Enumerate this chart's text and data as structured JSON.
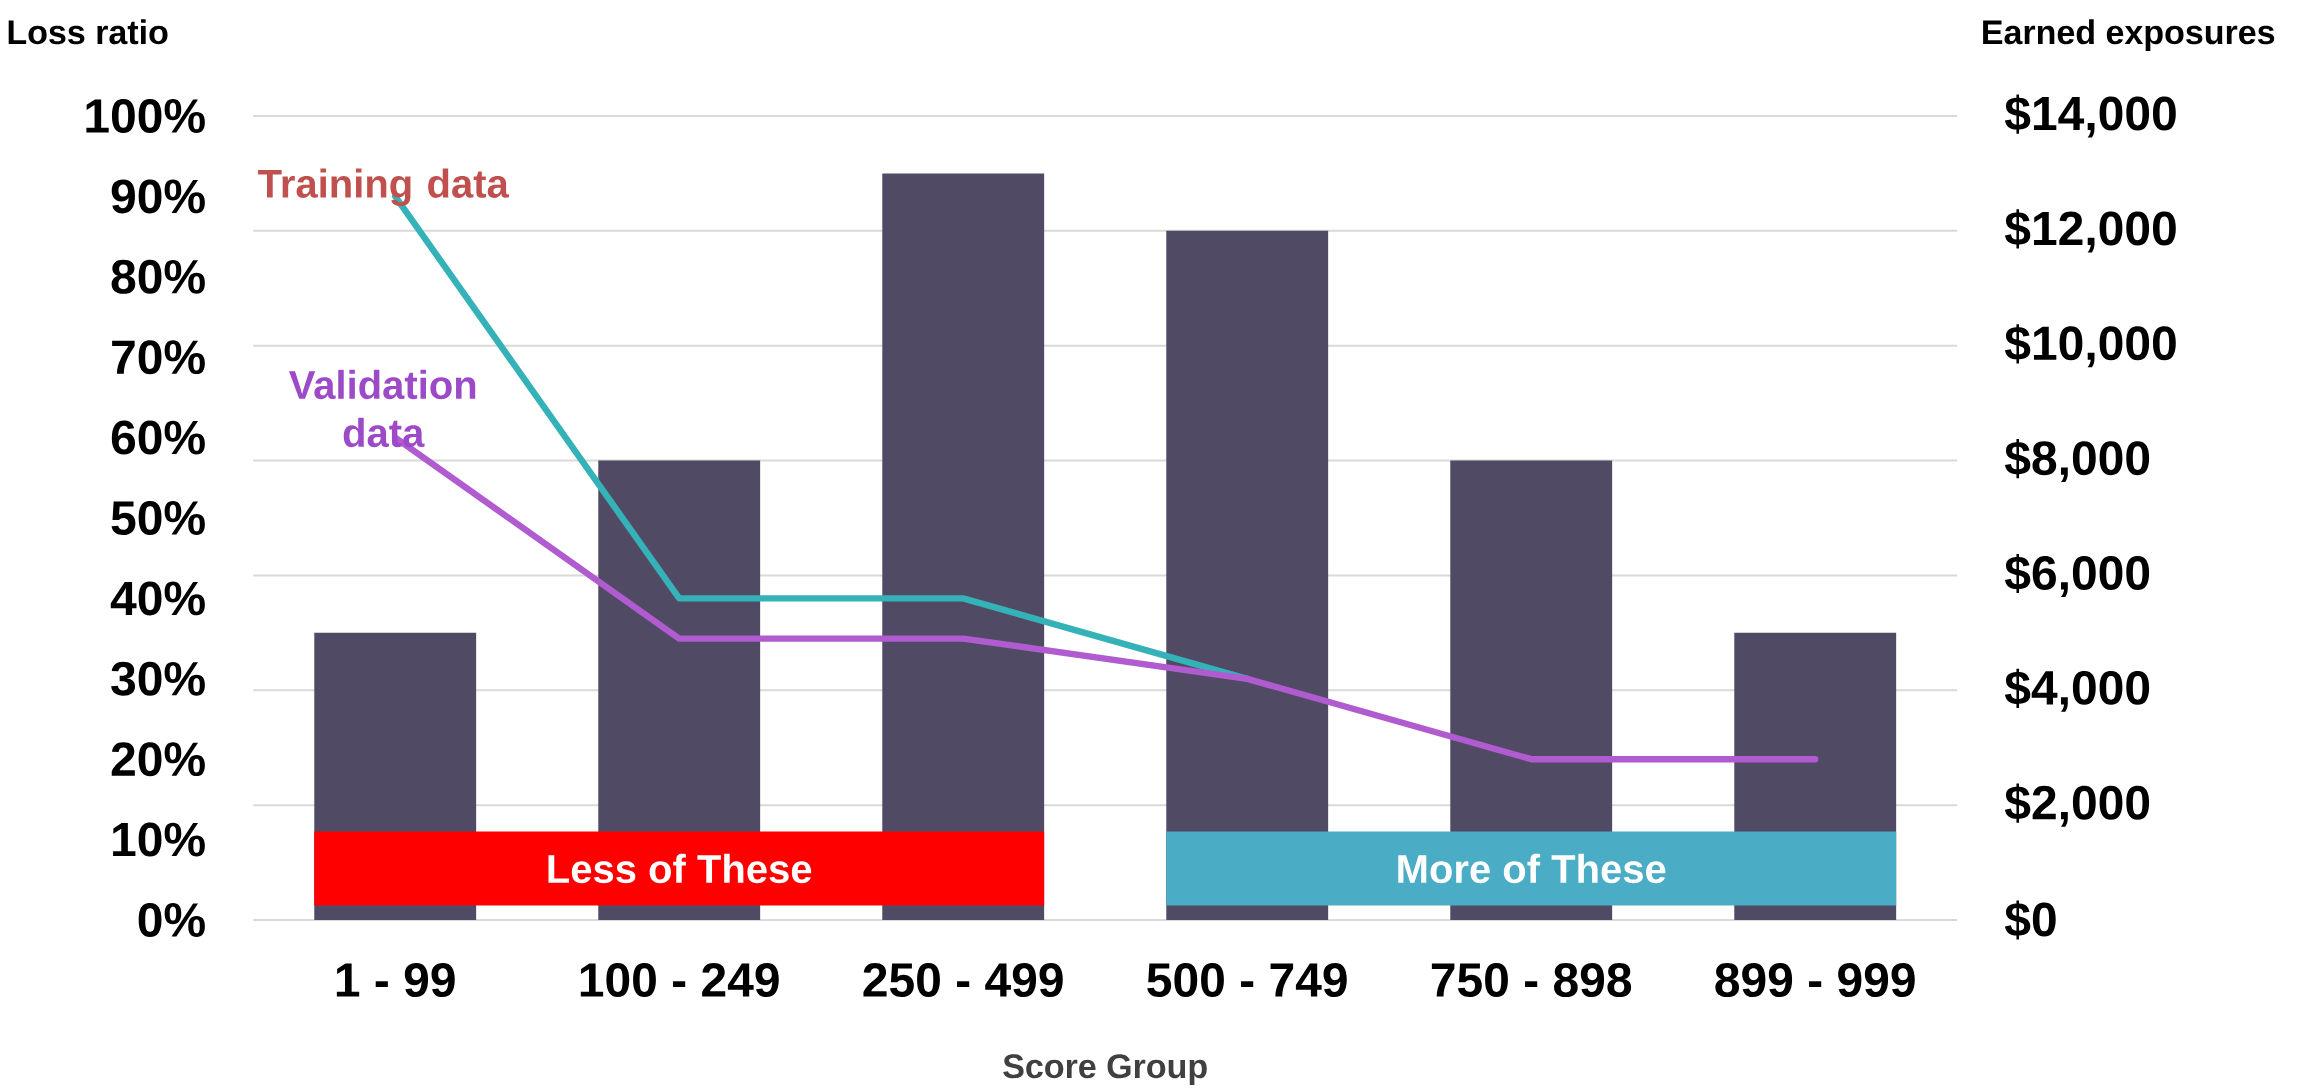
{
  "chart_data": {
    "type": "bar",
    "xlabel": "Score Group",
    "ylabel": "Loss ratio",
    "y2label": "Earned exposures",
    "categories": [
      "1 - 99",
      "100 - 249",
      "250 - 499",
      "500 - 749",
      "750 - 898",
      "899 - 999"
    ],
    "series": [
      {
        "axis": "y2",
        "color": "#514a64",
        "values": [
          5000,
          8000,
          13000,
          12000,
          8000,
          5000
        ]
      },
      {
        "name": "Training data",
        "type": "line",
        "color": "#35b1b8",
        "values": [
          90,
          40,
          40,
          30,
          null,
          null
        ]
      },
      {
        "name": "Validation data",
        "type": "line",
        "color": "#b05bd0",
        "values": [
          60,
          35,
          35,
          30,
          20,
          20
        ]
      }
    ],
    "ylim": [
      0,
      100
    ],
    "yticks": [
      {
        "value": 0,
        "label": "0%"
      },
      {
        "value": 10,
        "label": "10%"
      },
      {
        "value": 20,
        "label": "20%"
      },
      {
        "value": 30,
        "label": "30%"
      },
      {
        "value": 40,
        "label": "40%"
      },
      {
        "value": 50,
        "label": "50%"
      },
      {
        "value": 60,
        "label": "60%"
      },
      {
        "value": 70,
        "label": "70%"
      },
      {
        "value": 80,
        "label": "80%"
      },
      {
        "value": 90,
        "label": "90%"
      },
      {
        "value": 100,
        "label": "100%"
      }
    ],
    "y2lim": [
      0,
      14000
    ],
    "y2ticks": [
      {
        "value": 0,
        "label": "$0"
      },
      {
        "value": 2000,
        "label": "$2,000"
      },
      {
        "value": 4000,
        "label": "$4,000"
      },
      {
        "value": 6000,
        "label": "$6,000"
      },
      {
        "value": 8000,
        "label": "$8,000"
      },
      {
        "value": 10000,
        "label": "$10,000"
      },
      {
        "value": 12000,
        "label": "$12,000"
      },
      {
        "value": 14000,
        "label": "$14,000"
      }
    ],
    "grid": "y",
    "annotations": [
      "Less of These",
      "More of These"
    ]
  }
}
